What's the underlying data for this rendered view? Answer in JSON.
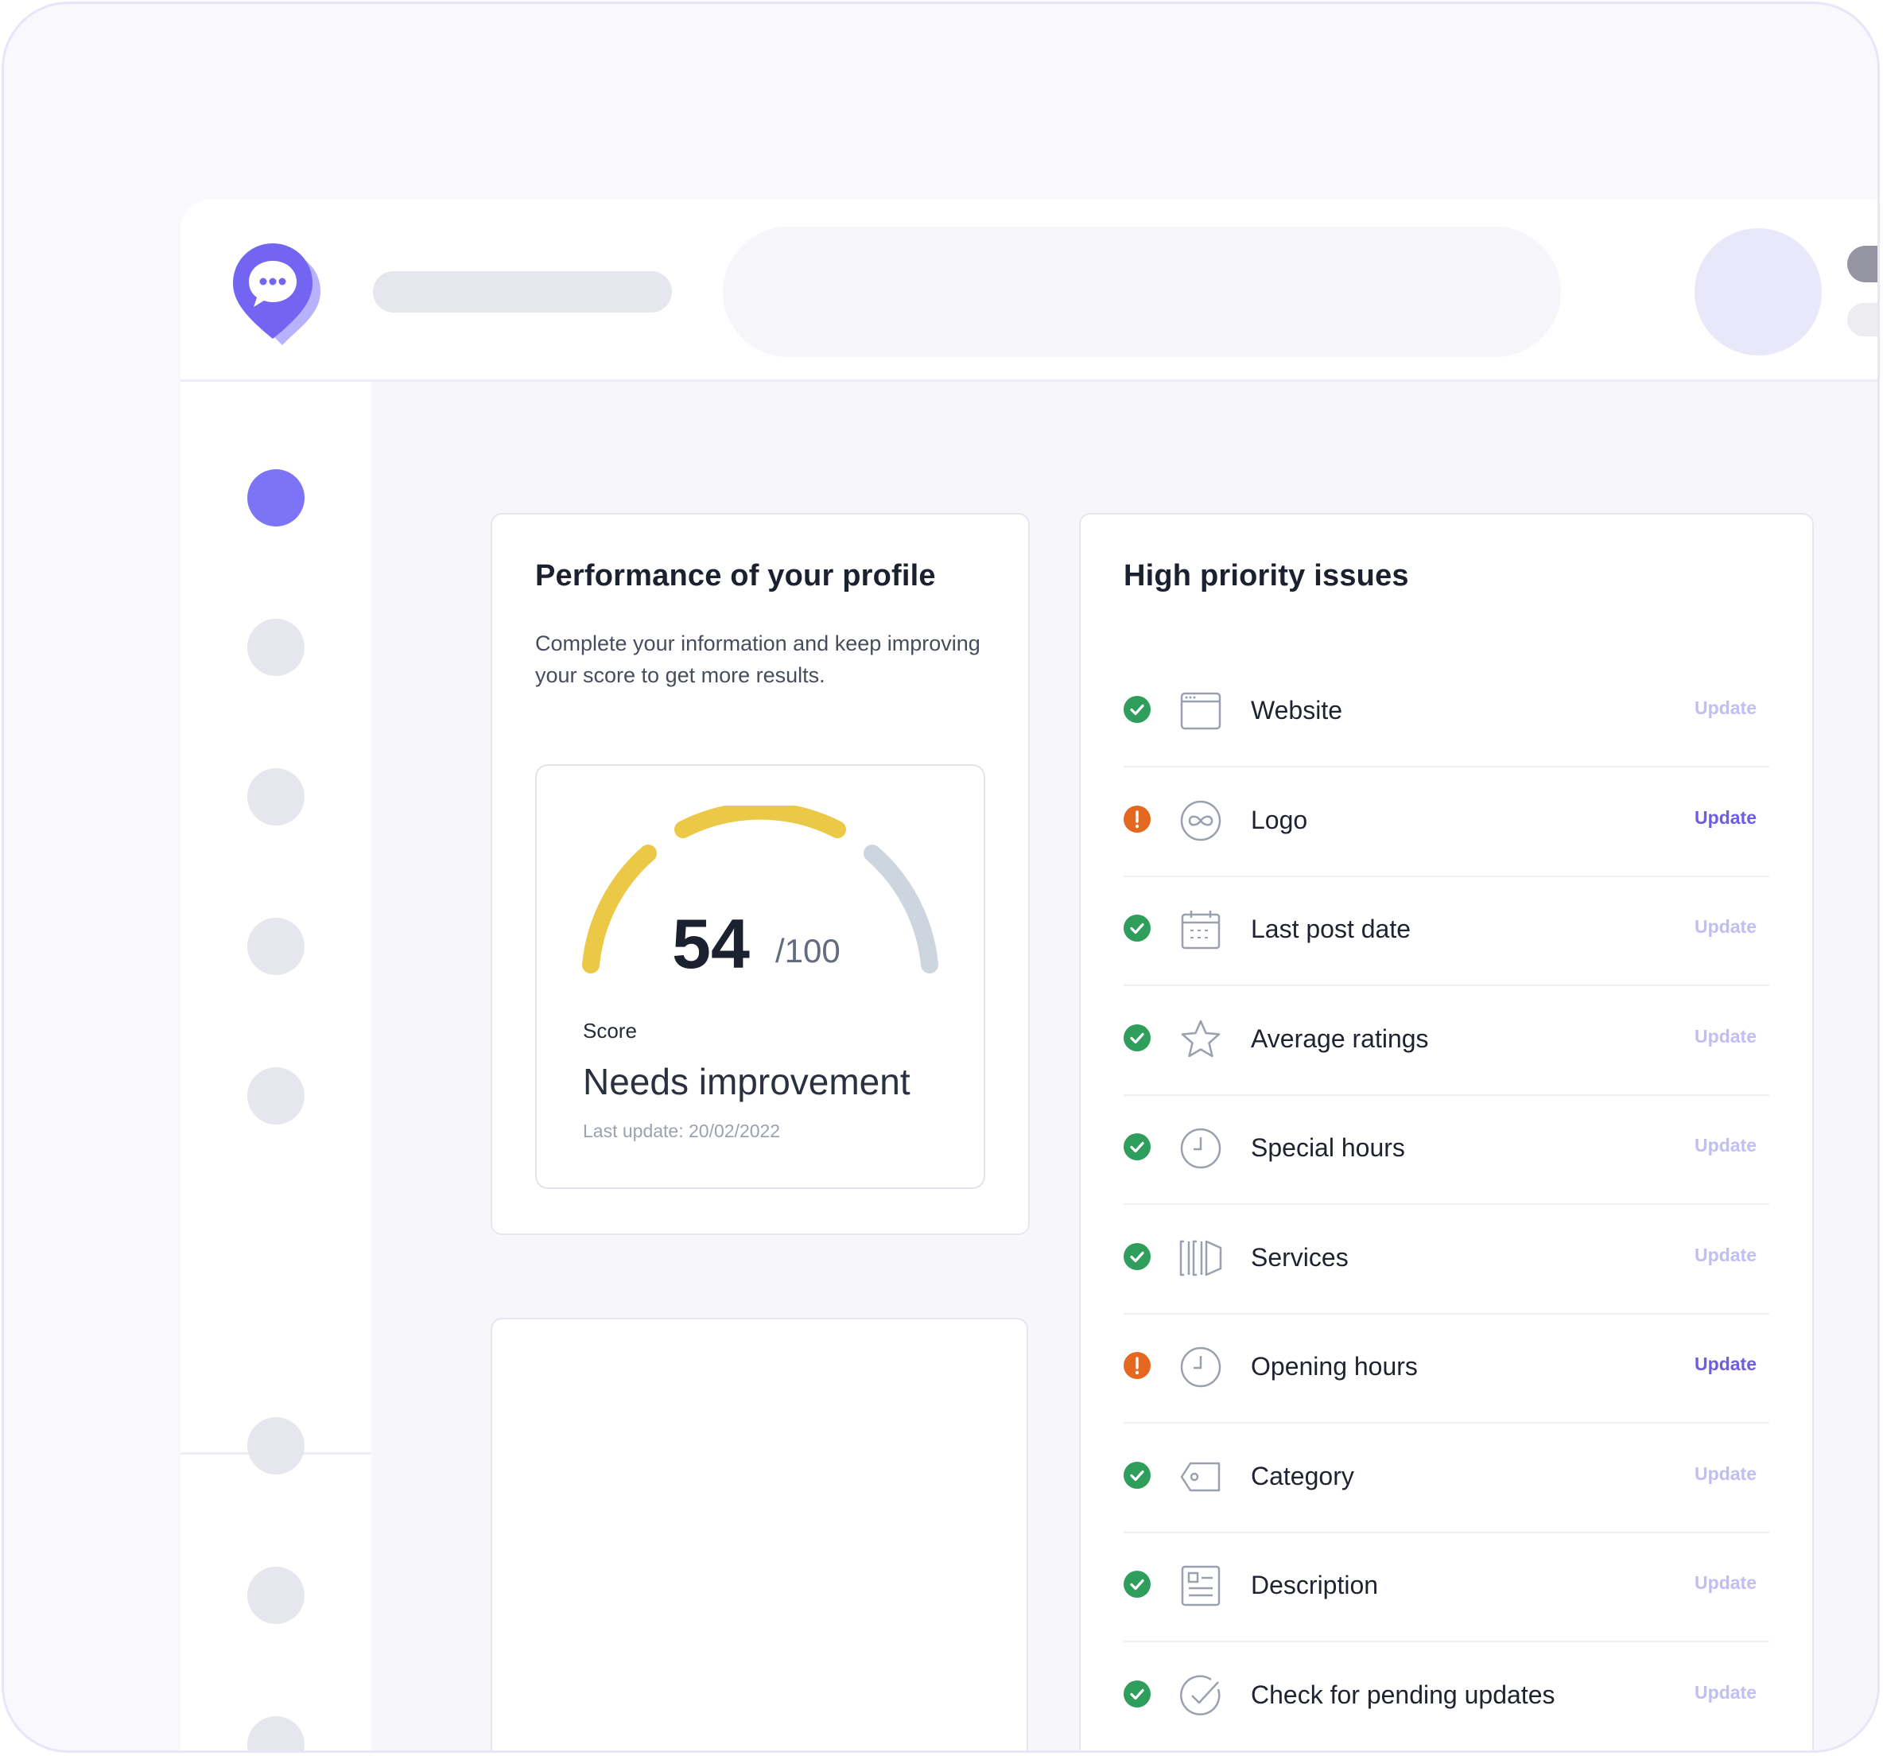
{
  "performance": {
    "title": "Performance of your profile",
    "description": "Complete your information and keep improving your score to get more results.",
    "score": {
      "value": "54",
      "max": "/100",
      "label": "Score",
      "status": "Needs improvement",
      "last_update": "Last update: 20/02/2022",
      "gauge": {
        "score": 54,
        "max": 100,
        "segment_colors": [
          "#ebc846",
          "#ebc846",
          "#cdd5de"
        ]
      }
    }
  },
  "issues": {
    "title": "High priority issues",
    "items": [
      {
        "label": "Website",
        "status": "done",
        "icon": "browser-window-icon",
        "action": "Update"
      },
      {
        "label": "Logo",
        "status": "warning",
        "icon": "infinity-logo-icon",
        "action": "Update"
      },
      {
        "label": "Last post date",
        "status": "done",
        "icon": "calendar-icon",
        "action": "Update"
      },
      {
        "label": "Average ratings",
        "status": "done",
        "icon": "star-icon",
        "action": "Update"
      },
      {
        "label": "Special hours",
        "status": "done",
        "icon": "clock-icon",
        "action": "Update"
      },
      {
        "label": "Services",
        "status": "done",
        "icon": "services-icon",
        "action": "Update"
      },
      {
        "label": "Opening hours",
        "status": "warning",
        "icon": "clock-icon",
        "action": "Update"
      },
      {
        "label": "Category",
        "status": "done",
        "icon": "tag-icon",
        "action": "Update"
      },
      {
        "label": "Description",
        "status": "done",
        "icon": "document-icon",
        "action": "Update"
      },
      {
        "label": "Check for pending updates",
        "status": "done",
        "icon": "check-circle-icon",
        "action": "Update"
      }
    ]
  },
  "colors": {
    "brand": "#7d73f7",
    "success": "#2f9e5d",
    "warning": "#e4681f",
    "update_link": "#6c5ce7",
    "update_link_muted": "#c2bdf5"
  }
}
